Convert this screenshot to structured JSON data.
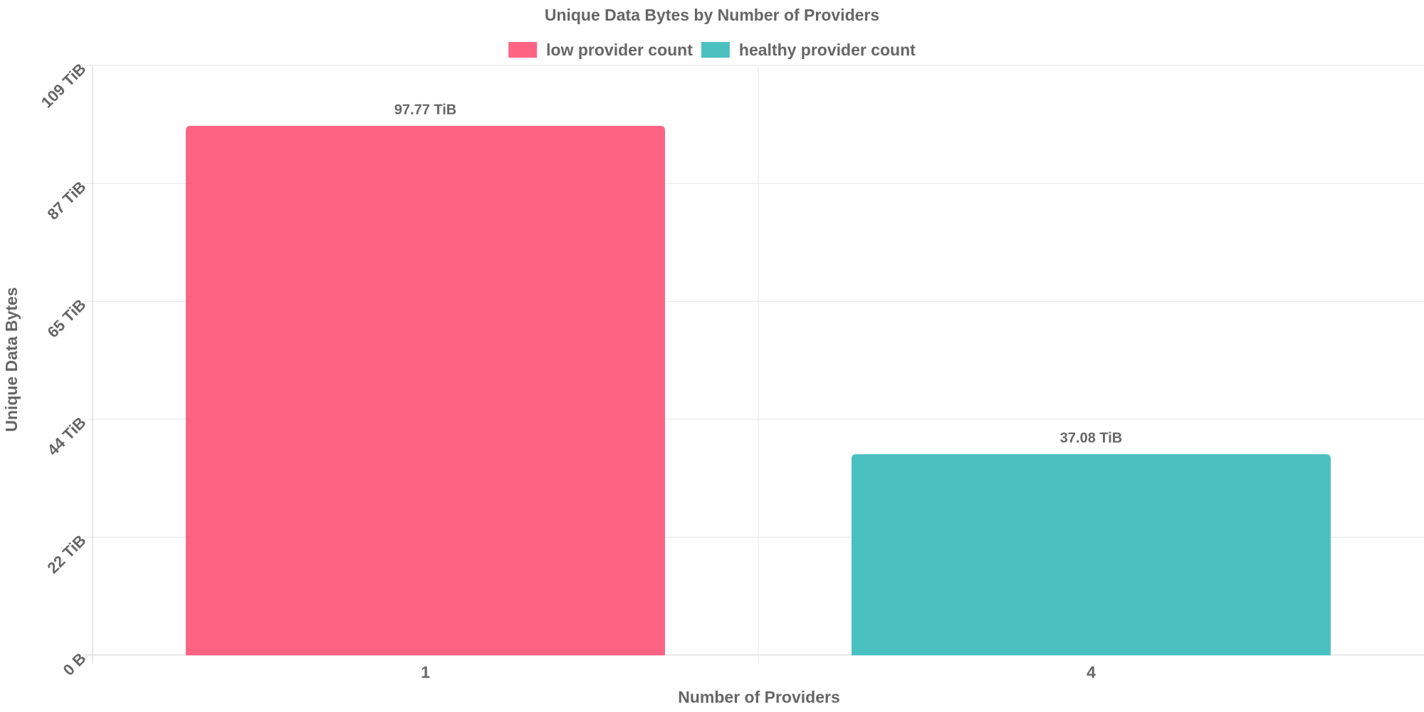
{
  "chart_data": {
    "type": "bar",
    "title": "Unique Data Bytes by Number of Providers",
    "xlabel": "Number of Providers",
    "ylabel": "Unique Data Bytes",
    "categories": [
      "1",
      "4"
    ],
    "series": [
      {
        "name": "low provider count",
        "color": "#ff6384",
        "values": [
          97.77,
          null
        ],
        "labels": [
          "97.77 TiB",
          ""
        ]
      },
      {
        "name": "healthy provider count",
        "color": "#4bc0c0",
        "values": [
          null,
          37.08
        ],
        "labels": [
          "",
          "37.08 TiB"
        ]
      }
    ],
    "unit": "TiB",
    "ylim": [
      0,
      109
    ],
    "yticks": [
      {
        "value": 0,
        "label": "0 B"
      },
      {
        "value": 21.8,
        "label": "22 TiB"
      },
      {
        "value": 43.6,
        "label": "44 TiB"
      },
      {
        "value": 65.4,
        "label": "65 TiB"
      },
      {
        "value": 87.2,
        "label": "87 TiB"
      },
      {
        "value": 109,
        "label": "109 TiB"
      }
    ],
    "legend_position": "top",
    "grid": true
  }
}
